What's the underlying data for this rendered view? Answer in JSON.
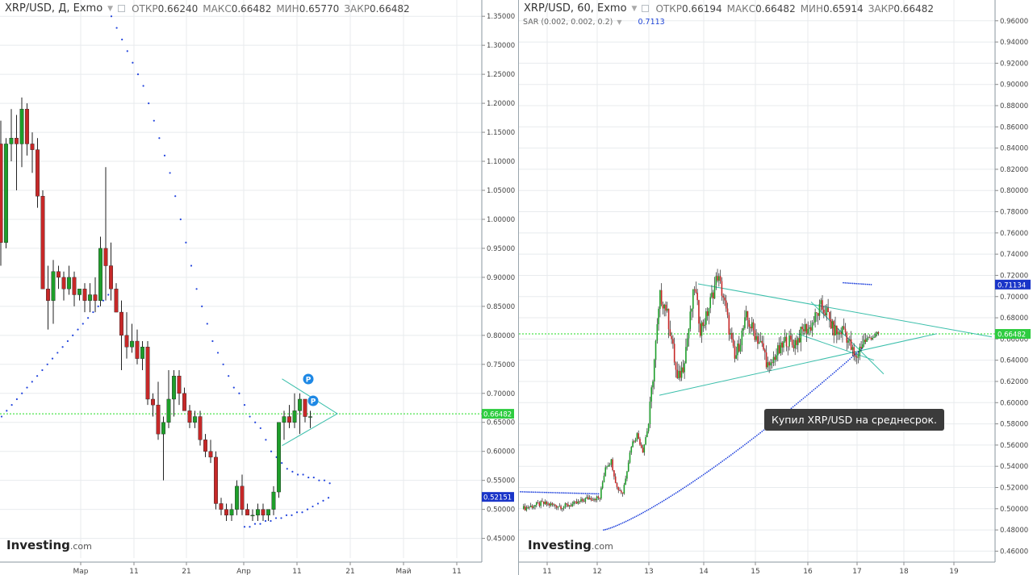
{
  "colors": {
    "up": "#1e9e2a",
    "down": "#c62828",
    "sar": "#2244dd",
    "trend": "#3bbfab",
    "price_line": "#22dd22",
    "grid": "#e8ebee",
    "axis_text": "#444444",
    "badge_green": "#2ecc40",
    "badge_blue": "#1a35c8",
    "pattern_badge": "#1e88e5"
  },
  "logo": {
    "brand": "Investing",
    "suffix": ".com"
  },
  "left_chart": {
    "symbol": "XRP/USD, Д, Exmo",
    "stats": [
      {
        "label": "ОТКР",
        "value": "0.66240"
      },
      {
        "label": "МАКС",
        "value": "0.66482"
      },
      {
        "label": "МИН",
        "value": "0.65770"
      },
      {
        "label": "ЗАКР",
        "value": "0.66482"
      }
    ],
    "price_tag": "0.66482",
    "sar_tag": "0.52151",
    "pattern_badge": "P"
  },
  "right_chart": {
    "symbol": "XRP/USD, 60, Exmo",
    "stats": [
      {
        "label": "ОТКР",
        "value": "0.66194"
      },
      {
        "label": "МАКС",
        "value": "0.66482"
      },
      {
        "label": "МИН",
        "value": "0.65914"
      },
      {
        "label": "ЗАКР",
        "value": "0.66482"
      }
    ],
    "indicator": {
      "name": "SAR (0.002, 0.002, 0.2)",
      "value": "0.7113"
    },
    "price_tag": "0.66482",
    "sar_tag": "0.71134",
    "note": "Купил XRP/USD на среднесрок."
  },
  "chart_data": [
    {
      "type": "candlestick",
      "title": "XRP/USD, Д, Exmo",
      "ylim": [
        0.43,
        1.36
      ],
      "y_ticks": [
        "0.45000",
        "0.50000",
        "0.55000",
        "0.60000",
        "0.65000",
        "0.70000",
        "0.75000",
        "0.80000",
        "0.85000",
        "0.90000",
        "0.95000",
        "1.00000",
        "1.05000",
        "1.10000",
        "1.15000",
        "1.20000",
        "1.25000",
        "1.30000",
        "1.35000"
      ],
      "x_ticks": [
        "Мар",
        "11",
        "21",
        "Апр",
        "11",
        "21",
        "Май",
        "11"
      ],
      "candles": [
        [
          1.13,
          1.17,
          0.92,
          0.96
        ],
        [
          0.96,
          1.14,
          0.95,
          1.13
        ],
        [
          1.13,
          1.19,
          1.1,
          1.14
        ],
        [
          1.14,
          1.18,
          1.05,
          1.13
        ],
        [
          1.13,
          1.21,
          1.09,
          1.19
        ],
        [
          1.19,
          1.2,
          1.11,
          1.13
        ],
        [
          1.13,
          1.15,
          1.08,
          1.12
        ],
        [
          1.12,
          1.14,
          1.02,
          1.04
        ],
        [
          1.04,
          1.05,
          0.88,
          0.88
        ],
        [
          0.88,
          0.92,
          0.81,
          0.86
        ],
        [
          0.86,
          0.93,
          0.82,
          0.91
        ],
        [
          0.91,
          0.92,
          0.88,
          0.9
        ],
        [
          0.9,
          0.91,
          0.86,
          0.88
        ],
        [
          0.88,
          0.92,
          0.87,
          0.9
        ],
        [
          0.9,
          0.91,
          0.85,
          0.87
        ],
        [
          0.87,
          0.88,
          0.86,
          0.88
        ],
        [
          0.88,
          0.89,
          0.84,
          0.86
        ],
        [
          0.86,
          0.89,
          0.84,
          0.87
        ],
        [
          0.87,
          0.9,
          0.84,
          0.86
        ],
        [
          0.86,
          0.97,
          0.85,
          0.95
        ],
        [
          0.95,
          1.09,
          0.86,
          0.92
        ],
        [
          0.92,
          0.96,
          0.86,
          0.88
        ],
        [
          0.88,
          0.89,
          0.84,
          0.84
        ],
        [
          0.84,
          0.86,
          0.74,
          0.8
        ],
        [
          0.8,
          0.84,
          0.76,
          0.78
        ],
        [
          0.78,
          0.82,
          0.77,
          0.79
        ],
        [
          0.79,
          0.81,
          0.75,
          0.76
        ],
        [
          0.76,
          0.79,
          0.74,
          0.78
        ],
        [
          0.78,
          0.79,
          0.68,
          0.69
        ],
        [
          0.69,
          0.7,
          0.66,
          0.68
        ],
        [
          0.68,
          0.72,
          0.62,
          0.63
        ],
        [
          0.63,
          0.66,
          0.55,
          0.65
        ],
        [
          0.65,
          0.74,
          0.64,
          0.69
        ],
        [
          0.69,
          0.74,
          0.66,
          0.73
        ],
        [
          0.73,
          0.74,
          0.68,
          0.7
        ],
        [
          0.7,
          0.71,
          0.67,
          0.67
        ],
        [
          0.67,
          0.68,
          0.64,
          0.65
        ],
        [
          0.65,
          0.67,
          0.64,
          0.66
        ],
        [
          0.66,
          0.67,
          0.61,
          0.62
        ],
        [
          0.62,
          0.63,
          0.59,
          0.6
        ],
        [
          0.6,
          0.62,
          0.58,
          0.59
        ],
        [
          0.59,
          0.6,
          0.5,
          0.51
        ],
        [
          0.51,
          0.52,
          0.49,
          0.5
        ],
        [
          0.5,
          0.51,
          0.48,
          0.49
        ],
        [
          0.49,
          0.51,
          0.48,
          0.5
        ],
        [
          0.5,
          0.55,
          0.49,
          0.54
        ],
        [
          0.54,
          0.56,
          0.49,
          0.5
        ],
        [
          0.5,
          0.51,
          0.49,
          0.49
        ],
        [
          0.49,
          0.5,
          0.48,
          0.49
        ],
        [
          0.49,
          0.51,
          0.48,
          0.5
        ],
        [
          0.5,
          0.51,
          0.48,
          0.49
        ],
        [
          0.49,
          0.5,
          0.48,
          0.5
        ],
        [
          0.5,
          0.54,
          0.49,
          0.53
        ],
        [
          0.53,
          0.65,
          0.52,
          0.65
        ],
        [
          0.65,
          0.67,
          0.62,
          0.66
        ],
        [
          0.66,
          0.68,
          0.64,
          0.65
        ],
        [
          0.65,
          0.7,
          0.64,
          0.67
        ],
        [
          0.67,
          0.7,
          0.63,
          0.69
        ],
        [
          0.69,
          0.69,
          0.65,
          0.66
        ],
        [
          0.66,
          0.67,
          0.64,
          0.66
        ]
      ],
      "sar_upper": [
        1.35,
        1.33,
        1.31,
        1.29,
        1.27,
        1.25,
        1.23,
        1.2,
        1.17,
        1.14,
        1.11,
        1.08,
        1.04,
        1.0,
        0.96,
        0.92,
        0.88,
        0.85,
        0.82,
        0.79,
        0.77,
        0.75,
        0.73,
        0.71,
        0.7,
        0.68,
        0.66,
        0.65,
        0.64,
        0.62,
        0.6,
        0.59,
        0.58,
        0.57,
        0.565,
        0.56,
        0.56,
        0.555,
        0.555,
        0.55,
        0.55,
        0.545
      ],
      "sar_lower_a": [
        0.66,
        0.67,
        0.68,
        0.69,
        0.7,
        0.71,
        0.72,
        0.73,
        0.74,
        0.75,
        0.76,
        0.77,
        0.78,
        0.79,
        0.8,
        0.81,
        0.82,
        0.83,
        0.84,
        0.85,
        0.86,
        0.87
      ],
      "sar_lower_b": [
        0.47,
        0.47,
        0.475,
        0.475,
        0.48,
        0.48,
        0.485,
        0.485,
        0.49,
        0.49,
        0.495,
        0.495,
        0.5,
        0.505,
        0.51,
        0.515,
        0.52
      ]
    },
    {
      "type": "candlestick",
      "title": "XRP/USD, 60, Exmo",
      "ylim": [
        0.455,
        0.972
      ],
      "y_ticks": [
        "0.46000",
        "0.48000",
        "0.50000",
        "0.52000",
        "0.54000",
        "0.56000",
        "0.58000",
        "0.60000",
        "0.62000",
        "0.64000",
        "0.66000",
        "0.68000",
        "0.70000",
        "0.72000",
        "0.74000",
        "0.76000",
        "0.78000",
        "0.80000",
        "0.82000",
        "0.84000",
        "0.86000",
        "0.88000",
        "0.90000",
        "0.92000",
        "0.94000",
        "0.96000"
      ],
      "x_ticks": [
        "11",
        "12",
        "13",
        "14",
        "15",
        "16",
        "17",
        "18",
        "19"
      ],
      "anchors": [
        [
          0,
          0.5
        ],
        [
          14,
          0.505
        ],
        [
          28,
          0.502
        ],
        [
          38,
          0.505
        ],
        [
          46,
          0.51
        ],
        [
          54,
          0.51
        ],
        [
          58,
          0.54
        ],
        [
          62,
          0.545
        ],
        [
          66,
          0.52
        ],
        [
          70,
          0.515
        ],
        [
          76,
          0.56
        ],
        [
          80,
          0.57
        ],
        [
          84,
          0.555
        ],
        [
          88,
          0.58
        ],
        [
          92,
          0.64
        ],
        [
          96,
          0.7
        ],
        [
          100,
          0.69
        ],
        [
          104,
          0.66
        ],
        [
          108,
          0.62
        ],
        [
          112,
          0.635
        ],
        [
          116,
          0.67
        ],
        [
          120,
          0.71
        ],
        [
          124,
          0.67
        ],
        [
          128,
          0.68
        ],
        [
          132,
          0.7
        ],
        [
          136,
          0.72
        ],
        [
          140,
          0.7
        ],
        [
          144,
          0.67
        ],
        [
          148,
          0.64
        ],
        [
          152,
          0.66
        ],
        [
          156,
          0.68
        ],
        [
          160,
          0.67
        ],
        [
          164,
          0.66
        ],
        [
          168,
          0.65
        ],
        [
          172,
          0.63
        ],
        [
          176,
          0.645
        ],
        [
          180,
          0.65
        ],
        [
          184,
          0.66
        ],
        [
          188,
          0.655
        ],
        [
          192,
          0.66
        ],
        [
          196,
          0.67
        ],
        [
          200,
          0.67
        ],
        [
          204,
          0.68
        ],
        [
          208,
          0.69
        ],
        [
          212,
          0.685
        ],
        [
          216,
          0.67
        ],
        [
          220,
          0.665
        ],
        [
          224,
          0.67
        ],
        [
          228,
          0.655
        ],
        [
          232,
          0.64
        ],
        [
          236,
          0.655
        ],
        [
          240,
          0.66
        ],
        [
          244,
          0.662
        ],
        [
          248,
          0.665
        ]
      ],
      "sar_upper": {
        "start": 0.516,
        "end": 0.514
      },
      "sar_lower": {
        "start": 0.48,
        "end": 0.651
      },
      "sar_last": 0.7113
    }
  ]
}
